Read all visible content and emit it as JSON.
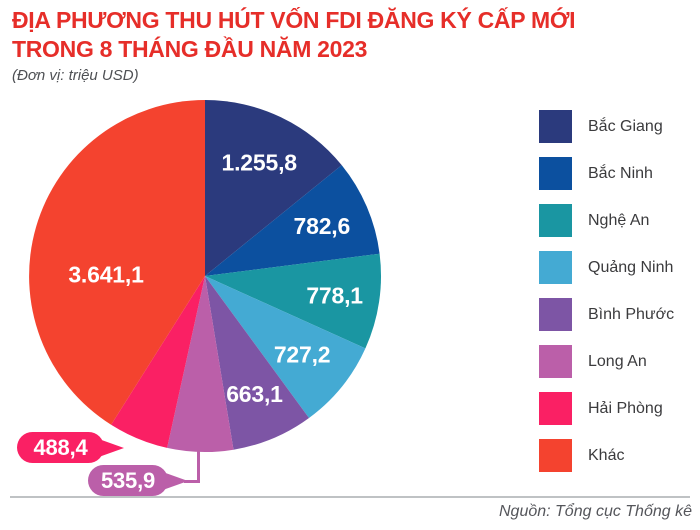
{
  "header": {
    "title_line1": "ĐỊA PHƯƠNG THU HÚT VỐN FDI ĐĂNG KÝ CẤP MỚI",
    "title_line2": "TRONG 8 THÁNG ĐẦU NĂM 2023",
    "unit_note": "(Đơn vị: triệu USD)"
  },
  "chart_data": {
    "type": "pie",
    "title": "ĐỊA PHƯƠNG THU HÚT VỐN FDI ĐĂNG KÝ CẤP MỚI TRONG 8 THÁNG ĐẦU NĂM 2023",
    "unit": "triệu USD",
    "legend_position": "right",
    "start_angle_deg": 0,
    "direction": "clockwise",
    "slices": [
      {
        "label": "Bắc Giang",
        "value": 1255.8,
        "display": "1.255,8",
        "color": "#2b3a7d"
      },
      {
        "label": "Bắc Ninh",
        "value": 782.6,
        "display": "782,6",
        "color": "#0c509f"
      },
      {
        "label": "Nghệ An",
        "value": 778.1,
        "display": "778,1",
        "color": "#1a96a2"
      },
      {
        "label": "Quảng Ninh",
        "value": 727.2,
        "display": "727,2",
        "color": "#44aad3"
      },
      {
        "label": "Bình Phước",
        "value": 663.1,
        "display": "663,1",
        "color": "#7d55a5"
      },
      {
        "label": "Long An",
        "value": 535.9,
        "display": "535,9",
        "color": "#bb5fa9"
      },
      {
        "label": "Hải Phòng",
        "value": 488.4,
        "display": "488,4",
        "color": "#fa2064"
      },
      {
        "label": "Khác",
        "value": 3641.1,
        "display": "3.641,1",
        "color": "#f4432f"
      }
    ]
  },
  "footer": {
    "source": "Nguồn: Tổng cục Thống kê"
  },
  "colors": {
    "title": "#e62e29",
    "background": "#ffffff",
    "legend_text": "#3b3b3d",
    "divider": "#bfc2c4",
    "source_text": "#55565b"
  }
}
